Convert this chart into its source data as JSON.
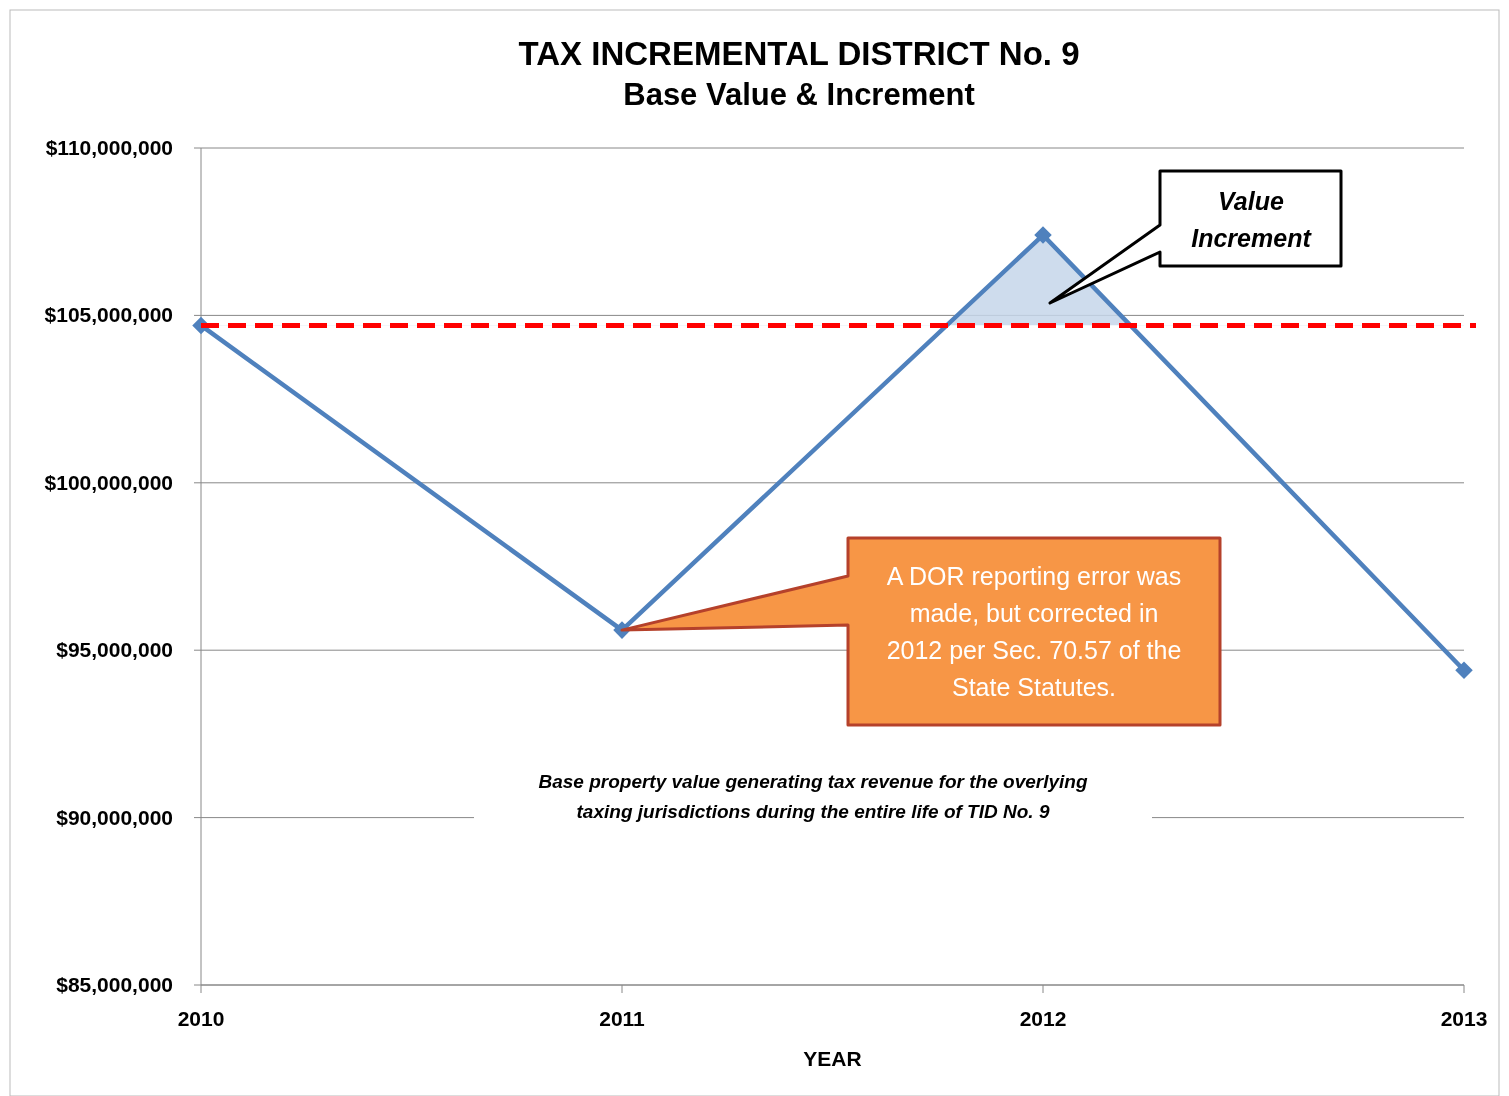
{
  "chart_data": {
    "type": "line",
    "title": "TAX INCREMENTAL DISTRICT No. 9",
    "subtitle": "Base Value & Increment",
    "xlabel": "YEAR",
    "categories": [
      "2010",
      "2011",
      "2012",
      "2013"
    ],
    "series": [
      {
        "color": "#4f81bd",
        "values": [
          104700000,
          95600000,
          107400000,
          94400000
        ]
      }
    ],
    "ylim": [
      85000000,
      110000000
    ],
    "yticks": [
      {
        "value": 85000000,
        "label": "$85,000,000"
      },
      {
        "value": 90000000,
        "label": "$90,000,000"
      },
      {
        "value": 95000000,
        "label": "$95,000,000"
      },
      {
        "value": 100000000,
        "label": "$100,000,000"
      },
      {
        "value": 105000000,
        "label": "$105,000,000"
      },
      {
        "value": 110000000,
        "label": "$110,000,000"
      }
    ],
    "grid": "y",
    "marker": "diamond",
    "line_style": "solid",
    "ref_lines": [
      {
        "axis": "y",
        "value": 104700000,
        "color": "#ff0000",
        "line_style": "dashed"
      }
    ],
    "annotations": [
      "A DOR reporting error was made, but corrected in 2012 per Sec. 70.57 of the State Statutes.",
      "Value Increment",
      "Base property value generating tax revenue for the overlying taxing jurisdictions during the entire life of TID No. 9"
    ]
  }
}
